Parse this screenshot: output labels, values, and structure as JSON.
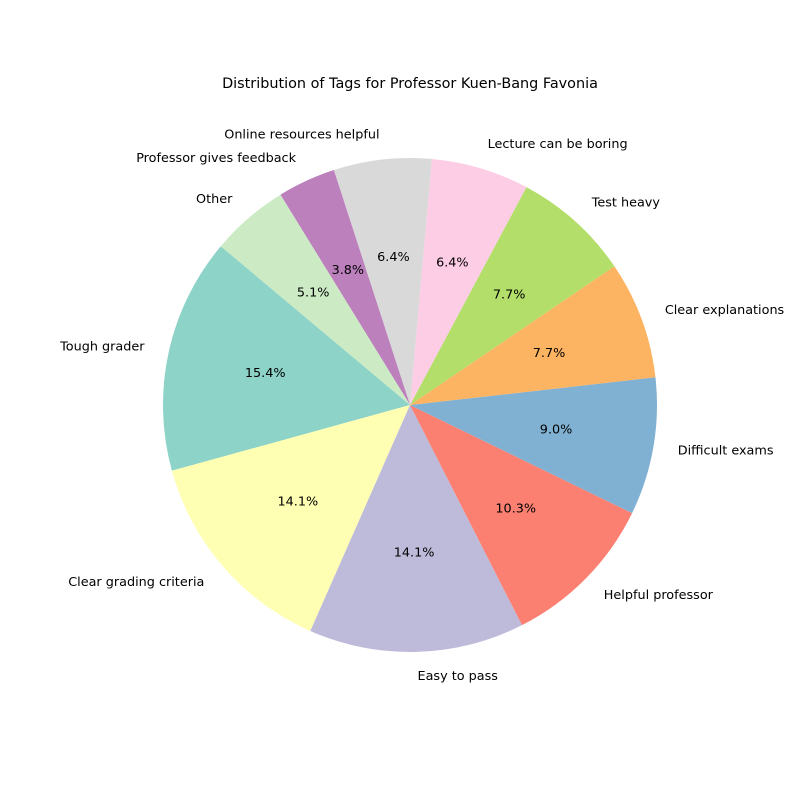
{
  "chart_data": {
    "type": "pie",
    "title": "Distribution of Tags for Professor Kuen-Bang Favonia",
    "start_angle_deg": 140,
    "direction": "counterclockwise",
    "slices": [
      {
        "label": "Tough grader",
        "value": 15.4,
        "pct_label": "15.4%",
        "color": "#8dd3c7"
      },
      {
        "label": "Clear grading criteria",
        "value": 14.1,
        "pct_label": "14.1%",
        "color": "#ffffb3"
      },
      {
        "label": "Easy to pass",
        "value": 14.1,
        "pct_label": "14.1%",
        "color": "#bebada"
      },
      {
        "label": "Helpful professor",
        "value": 10.3,
        "pct_label": "10.3%",
        "color": "#fb8072"
      },
      {
        "label": "Difficult exams",
        "value": 9.0,
        "pct_label": "9.0%",
        "color": "#80b1d3"
      },
      {
        "label": "Clear explanations",
        "value": 7.7,
        "pct_label": "7.7%",
        "color": "#fdb462"
      },
      {
        "label": "Test heavy",
        "value": 7.7,
        "pct_label": "7.7%",
        "color": "#b3de69"
      },
      {
        "label": "Lecture can be boring",
        "value": 6.4,
        "pct_label": "6.4%",
        "color": "#fccde5"
      },
      {
        "label": "Online resources helpful",
        "value": 6.4,
        "pct_label": "6.4%",
        "color": "#d9d9d9"
      },
      {
        "label": "Professor gives feedback",
        "value": 3.8,
        "pct_label": "3.8%",
        "color": "#bc80bd"
      },
      {
        "label": "Other",
        "value": 5.1,
        "pct_label": "5.1%",
        "color": "#ccebc5"
      }
    ]
  }
}
